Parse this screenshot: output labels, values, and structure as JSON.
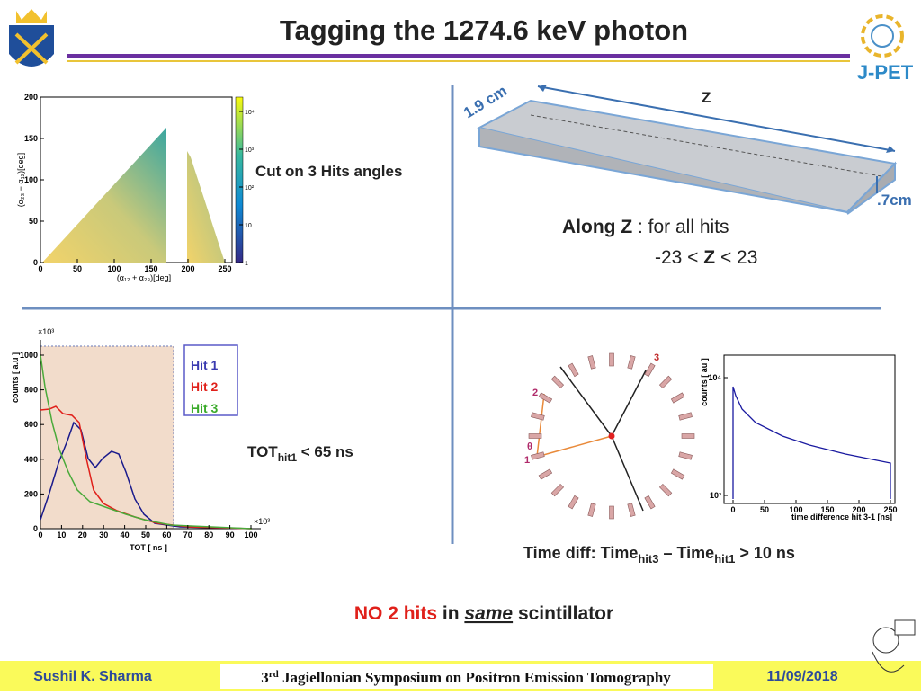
{
  "header": {
    "title": "Tagging the 1274.6 keV photon",
    "logo_text": "J-PET"
  },
  "angle_plot": {
    "caption": "Cut on 3 Hits angles",
    "x_label": "(α₁₂ + α₂₃)[deg]",
    "y_label": "(α₂₃ − α₁₂)[deg]",
    "xticks": [
      0,
      50,
      100,
      150,
      200,
      250
    ],
    "yticks": [
      0,
      50,
      100,
      150,
      200
    ],
    "colorbar_ticks": [
      {
        "value": 1,
        "label": "1"
      },
      {
        "value": 10,
        "label": "10"
      },
      {
        "value": 100,
        "label": "10²"
      },
      {
        "value": 1000,
        "label": "10³"
      },
      {
        "value": 10000,
        "label": "10⁴"
      }
    ]
  },
  "detector": {
    "width_label": "1.9 cm",
    "length_label": "Z",
    "height_label": ".7cm",
    "cut_line1": [
      "Along Z",
      " : for all hits"
    ],
    "cut_line2": [
      "-23 < ",
      "Z",
      " < 23"
    ]
  },
  "tot_plot": {
    "x_label": "TOT [ ns ]",
    "y_label": "counts [ a.u ]",
    "x_multiplier": "×10³",
    "y_multiplier": "×10³",
    "xticks": [
      0,
      10,
      20,
      30,
      40,
      50,
      60,
      70,
      80,
      90,
      100
    ],
    "yticks": [
      0,
      200,
      400,
      600,
      800,
      1000
    ],
    "legend": [
      "Hit 1",
      "Hit 2",
      "Hit 3"
    ],
    "caption": [
      "TOT",
      "hit1",
      " < 65 ns"
    ]
  },
  "diagram": {
    "labels": [
      "1",
      "2",
      "3",
      "θ"
    ]
  },
  "time_plot": {
    "x_label": "time difference hit 3-1 [ns]",
    "y_label": "counts [ au ]",
    "xticks": [
      0,
      50,
      100,
      150,
      200,
      250
    ],
    "yticks": [
      {
        "value": 1000,
        "label": "10³"
      },
      {
        "value": 10000,
        "label": "10⁴"
      }
    ],
    "caption": [
      "Time diff:  Time",
      "hit3",
      " – Time",
      "hit1",
      " > 10 ns"
    ]
  },
  "note": [
    "NO 2 hits",
    " in ",
    "same",
    " scintillator"
  ],
  "footer": {
    "author": "Sushil K. Sharma",
    "event": [
      "3",
      "rd",
      " Jagiellonian Symposium on Positron Emission Tomography"
    ],
    "date": "11/09/2018"
  }
}
